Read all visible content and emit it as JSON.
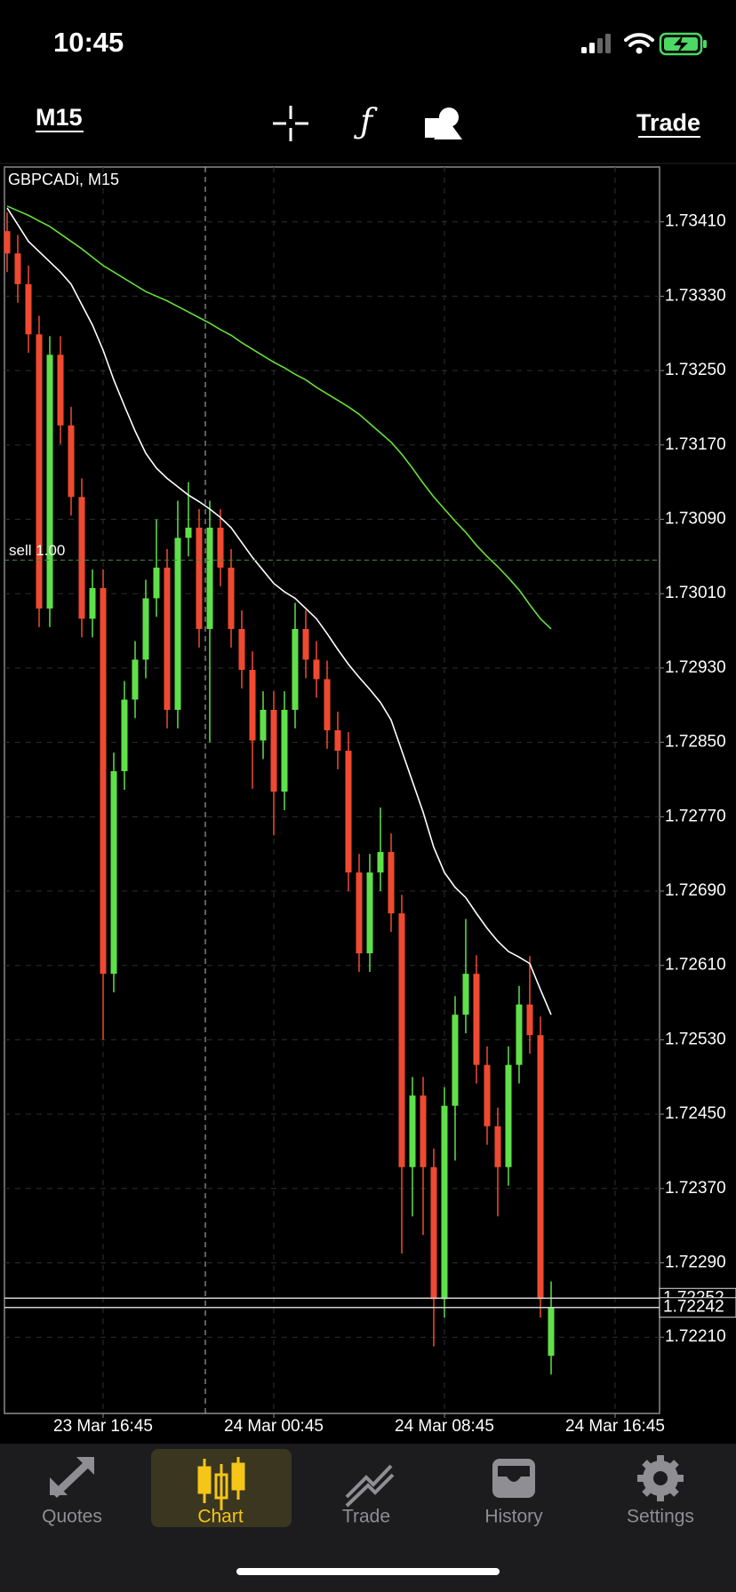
{
  "status_bar": {
    "time": "10:45"
  },
  "toolbar": {
    "timeframe": "M15",
    "trade": "Trade"
  },
  "chart_data": {
    "type": "candlestick",
    "title": "GBPCADi, M15",
    "categories": [
      null,
      null,
      null,
      null,
      null,
      null,
      null,
      null,
      null,
      "23 Mar 16:45",
      null,
      null,
      null,
      null,
      null,
      null,
      null,
      null,
      null,
      null,
      null,
      null,
      null,
      null,
      null,
      "24 Mar 00:45",
      null,
      null,
      null,
      null,
      null,
      null,
      null,
      null,
      null,
      null,
      null,
      null,
      null,
      null,
      null,
      "24 Mar 08:45",
      null,
      null,
      null,
      null,
      null,
      null,
      null,
      null,
      null,
      null,
      null,
      null,
      null,
      null,
      null,
      "24 Mar 16:45"
    ],
    "open": [
      1.734,
      1.73376,
      1.73343,
      1.73289,
      1.72994,
      1.73267,
      1.73191,
      1.73114,
      1.72983,
      1.73016,
      1.72601,
      1.72819,
      1.72896,
      1.72939,
      1.73005,
      1.73038,
      1.72885,
      1.7307,
      1.73081,
      1.72972,
      1.73081,
      1.73038,
      1.72972,
      1.72928,
      1.72852,
      1.72885,
      1.72797,
      1.72885,
      1.72972,
      1.72939,
      1.72918,
      1.72863,
      1.72841,
      1.7271,
      1.72623,
      1.7271,
      1.72732,
      1.72666,
      1.72393,
      1.7247,
      1.72393,
      1.72251,
      1.72459,
      1.72557,
      1.72601,
      1.72503,
      1.72437,
      1.72393,
      1.72503,
      1.72568,
      1.72535,
      1.7219,
      null,
      null,
      null,
      null,
      null,
      null
    ],
    "high": [
      1.7342,
      1.73396,
      1.73363,
      1.73309,
      1.73287,
      1.73287,
      1.73211,
      1.73134,
      1.73036,
      1.73036,
      1.72839,
      1.72916,
      1.72959,
      1.73025,
      1.7309,
      1.73058,
      1.7311,
      1.7313,
      1.73101,
      1.7311,
      1.73101,
      1.73058,
      1.72992,
      1.72948,
      1.72905,
      1.72905,
      1.72905,
      1.73,
      1.72992,
      1.72959,
      1.72938,
      1.72883,
      1.72861,
      1.7273,
      1.7273,
      1.7278,
      1.72752,
      1.72686,
      1.7249,
      1.7249,
      1.72413,
      1.72479,
      1.72577,
      1.7266,
      1.72621,
      1.72523,
      1.72457,
      1.72523,
      1.72588,
      1.7262,
      1.72555,
      1.7227,
      null,
      null,
      null,
      null,
      null,
      null
    ],
    "low": [
      1.73356,
      1.73323,
      1.73269,
      1.72974,
      1.72974,
      1.73171,
      1.73094,
      1.72963,
      1.72963,
      1.7253,
      1.72581,
      1.72799,
      1.72876,
      1.72919,
      1.72985,
      1.72865,
      1.72865,
      1.7305,
      1.72952,
      1.7285,
      1.73018,
      1.72952,
      1.72908,
      1.728,
      1.72832,
      1.7275,
      1.72777,
      1.72865,
      1.72919,
      1.72898,
      1.72843,
      1.72821,
      1.7269,
      1.72603,
      1.72603,
      1.7269,
      1.72646,
      1.723,
      1.7234,
      1.7232,
      1.722,
      1.72231,
      1.724,
      1.72537,
      1.72483,
      1.72417,
      1.7234,
      1.72373,
      1.72483,
      1.72515,
      1.72231,
      1.7217,
      null,
      null,
      null,
      null,
      null,
      null
    ],
    "close": [
      1.73376,
      1.73343,
      1.73289,
      1.72994,
      1.73267,
      1.73191,
      1.73114,
      1.72983,
      1.73016,
      1.72601,
      1.72819,
      1.72896,
      1.72939,
      1.73005,
      1.73038,
      1.72885,
      1.7307,
      1.73081,
      1.72972,
      1.73081,
      1.73038,
      1.72972,
      1.72928,
      1.72852,
      1.72885,
      1.72797,
      1.72885,
      1.72972,
      1.72939,
      1.72918,
      1.72863,
      1.72841,
      1.7271,
      1.72623,
      1.7271,
      1.72732,
      1.72666,
      1.72393,
      1.7247,
      1.72393,
      1.72251,
      1.72459,
      1.72557,
      1.72601,
      1.72503,
      1.72437,
      1.72393,
      1.72503,
      1.72568,
      1.72535,
      1.72251,
      1.72242,
      null,
      null,
      null,
      null,
      null,
      null
    ],
    "up_color": "#5fe04a",
    "down_color": "#ef4a31",
    "moving_averages": [
      {
        "color": "#ffffff",
        "values": [
          1.73425,
          1.73407,
          1.73389,
          1.73378,
          1.73367,
          1.73356,
          1.73343,
          1.73321,
          1.73299,
          1.73272,
          1.7324,
          1.73212,
          1.73185,
          1.73161,
          1.73145,
          1.73134,
          1.73125,
          1.73116,
          1.73109,
          1.73101,
          1.73092,
          1.73081,
          1.73065,
          1.73049,
          1.73035,
          1.73021,
          1.73012,
          1.73005,
          1.72994,
          1.72983,
          1.72967,
          1.7295,
          1.72934,
          1.7292,
          1.72907,
          1.72893,
          1.72874,
          1.72841,
          1.72808,
          1.72775,
          1.72737,
          1.7271,
          1.72694,
          1.72683,
          1.72666,
          1.7265,
          1.72636,
          1.72625,
          1.72619,
          1.72612,
          1.72584,
          1.72557,
          null,
          null,
          null,
          null,
          null,
          null
        ]
      },
      {
        "color": "#66e03a",
        "values": [
          1.73427,
          1.73422,
          1.73417,
          1.73411,
          1.73405,
          1.73397,
          1.73389,
          1.73381,
          1.73372,
          1.73363,
          1.73356,
          1.73349,
          1.73342,
          1.73335,
          1.7333,
          1.73325,
          1.73319,
          1.73313,
          1.73307,
          1.73301,
          1.73294,
          1.73288,
          1.7328,
          1.73273,
          1.73266,
          1.73259,
          1.73253,
          1.73246,
          1.7324,
          1.73232,
          1.73225,
          1.73218,
          1.73211,
          1.73203,
          1.73193,
          1.73183,
          1.73173,
          1.7316,
          1.73145,
          1.73129,
          1.73114,
          1.73101,
          1.73088,
          1.73076,
          1.73062,
          1.7305,
          1.73039,
          1.73027,
          1.73014,
          1.72998,
          1.72983,
          1.72972,
          null,
          null,
          null,
          null,
          null,
          null
        ]
      }
    ],
    "ylim": [
      1.72128,
      1.73469
    ],
    "yticks": [
      {
        "value": 1.7341,
        "label": "1.73410"
      },
      {
        "value": 1.7333,
        "label": "1.73330"
      },
      {
        "value": 1.7325,
        "label": "1.73250"
      },
      {
        "value": 1.7317,
        "label": "1.73170"
      },
      {
        "value": 1.7309,
        "label": "1.73090"
      },
      {
        "value": 1.7301,
        "label": "1.73010"
      },
      {
        "value": 1.7293,
        "label": "1.72930"
      },
      {
        "value": 1.7285,
        "label": "1.72850"
      },
      {
        "value": 1.7277,
        "label": "1.72770"
      },
      {
        "value": 1.7269,
        "label": "1.72690"
      },
      {
        "value": 1.7261,
        "label": "1.72610"
      },
      {
        "value": 1.7253,
        "label": "1.72530"
      },
      {
        "value": 1.7245,
        "label": "1.72450"
      },
      {
        "value": 1.7237,
        "label": "1.72370"
      },
      {
        "value": 1.7229,
        "label": "1.72290"
      },
      {
        "value": 1.7221,
        "label": "1.72210"
      }
    ],
    "grid": true,
    "price_lines": [
      {
        "value": 1.73046,
        "label": "sell 1.00",
        "color": "#3c8a3c"
      },
      {
        "value": 1.72252,
        "color": "#d0d0d0"
      },
      {
        "value": 1.72242,
        "color": "#d0d0d0"
      }
    ]
  },
  "tab_bar": {
    "tabs": [
      "Quotes",
      "Chart",
      "Trade",
      "History",
      "Settings"
    ]
  }
}
